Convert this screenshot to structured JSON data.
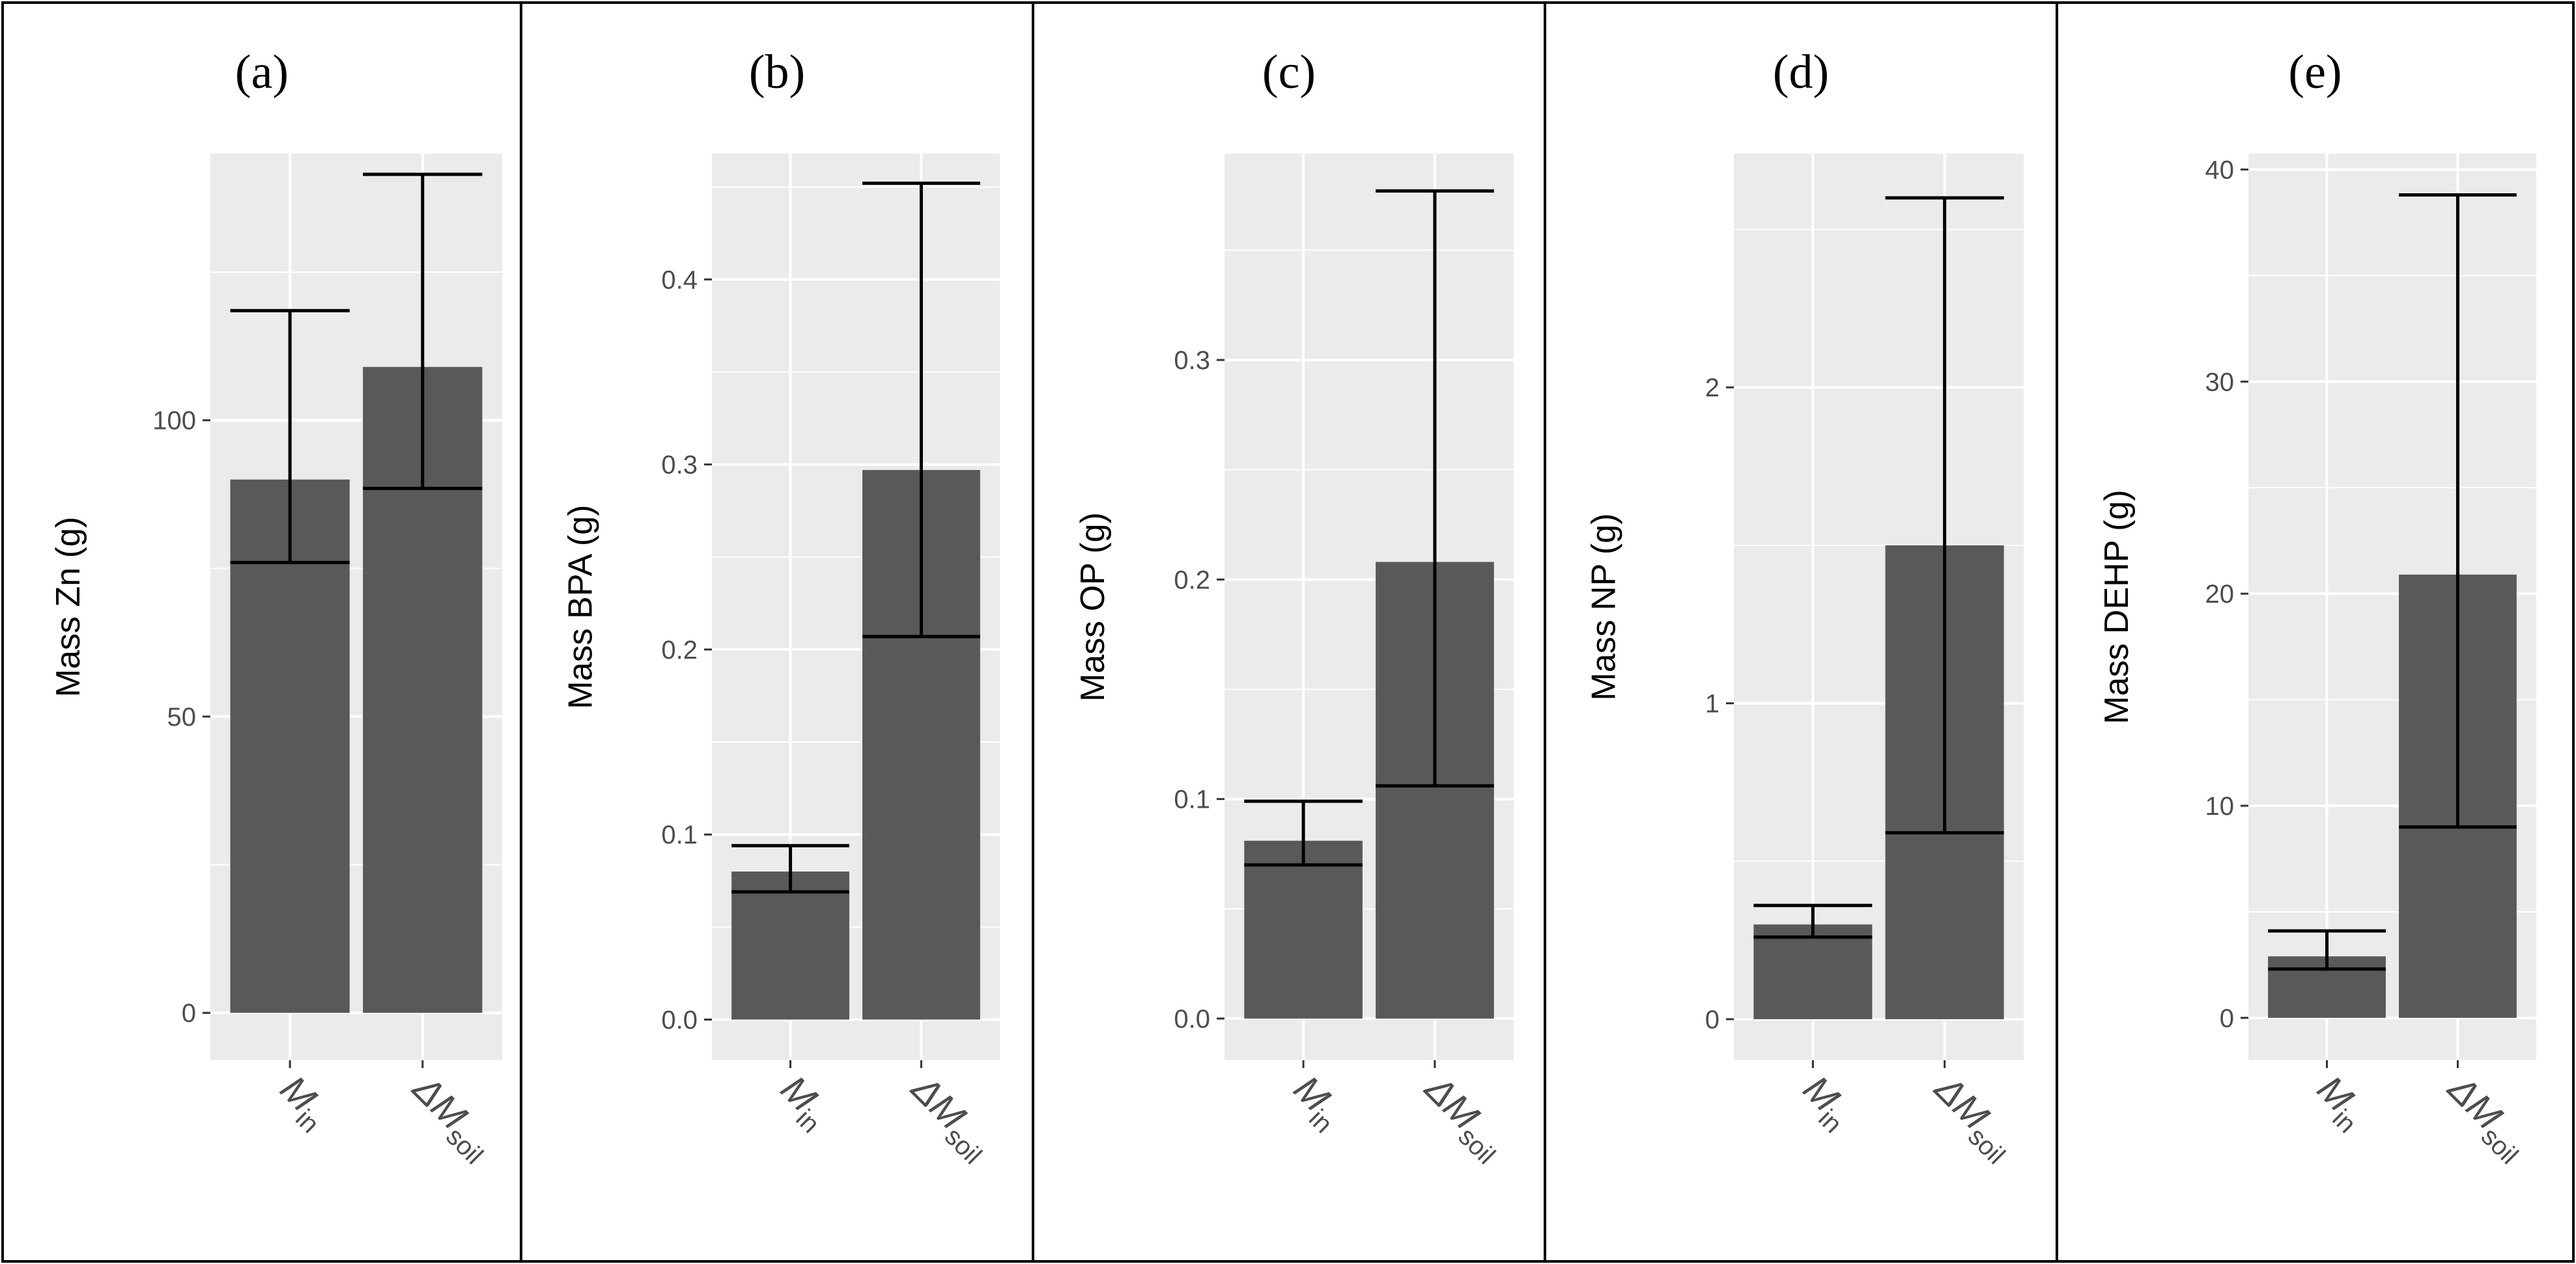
{
  "chart_data": [
    {
      "type": "bar",
      "panel_label": "(a)",
      "ylabel": "Mass Zn (g)",
      "ylim": [
        -8,
        145
      ],
      "yticks": [
        0,
        50,
        100
      ],
      "categories": [
        {
          "main": "M",
          "sub": "in"
        },
        {
          "main": "ΔM",
          "sub": "soil"
        }
      ],
      "values": [
        90,
        109
      ],
      "error_low": [
        76,
        88.5
      ],
      "error_high": [
        118.5,
        141.5
      ]
    },
    {
      "type": "bar",
      "panel_label": "(b)",
      "ylabel": "Mass BPA (g)",
      "ylim": [
        -0.022,
        0.468
      ],
      "yticks": [
        0.0,
        0.1,
        0.2,
        0.3,
        0.4
      ],
      "tick_format": "0.0",
      "categories": [
        {
          "main": "M",
          "sub": "in"
        },
        {
          "main": "ΔM",
          "sub": "soil"
        }
      ],
      "values": [
        0.08,
        0.297
      ],
      "error_low": [
        0.069,
        0.207
      ],
      "error_high": [
        0.094,
        0.452
      ]
    },
    {
      "type": "bar",
      "panel_label": "(c)",
      "ylabel": "Mass OP (g)",
      "ylim": [
        -0.019,
        0.394
      ],
      "yticks": [
        0.0,
        0.1,
        0.2,
        0.3
      ],
      "tick_format": "0.0",
      "categories": [
        {
          "main": "M",
          "sub": "in"
        },
        {
          "main": "ΔM",
          "sub": "soil"
        }
      ],
      "values": [
        0.081,
        0.208
      ],
      "error_low": [
        0.07,
        0.106
      ],
      "error_high": [
        0.099,
        0.377
      ]
    },
    {
      "type": "bar",
      "panel_label": "(d)",
      "ylabel": "Mass NP (g)",
      "ylim": [
        -0.13,
        2.74
      ],
      "yticks": [
        0,
        1,
        2
      ],
      "categories": [
        {
          "main": "M",
          "sub": "in"
        },
        {
          "main": "ΔM",
          "sub": "soil"
        }
      ],
      "values": [
        0.3,
        1.5
      ],
      "error_low": [
        0.26,
        0.59
      ],
      "error_high": [
        0.36,
        2.6
      ]
    },
    {
      "type": "bar",
      "panel_label": "(e)",
      "ylabel": "Mass DEHP (g)",
      "ylim": [
        -2.0,
        40.75
      ],
      "yticks": [
        0,
        10,
        20,
        30,
        40
      ],
      "categories": [
        {
          "main": "M",
          "sub": "in"
        },
        {
          "main": "ΔM",
          "sub": "soil"
        }
      ],
      "values": [
        2.9,
        20.9
      ],
      "error_low": [
        2.3,
        9.0
      ],
      "error_high": [
        4.1,
        38.8
      ]
    }
  ]
}
